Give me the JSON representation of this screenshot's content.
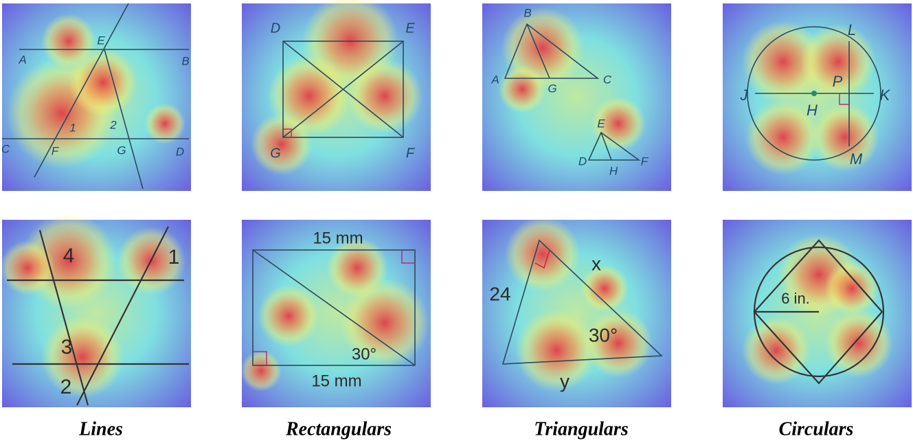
{
  "captions": [
    "Lines",
    "Rectangulars",
    "Triangulars",
    "Circulars"
  ],
  "panels": [
    {
      "labels": [
        "E",
        "A",
        "B",
        "1",
        "2",
        "C",
        "F",
        "G",
        "D"
      ]
    },
    {
      "labels": [
        "D",
        "E",
        "G",
        "F"
      ]
    },
    {
      "labels": [
        "B",
        "A",
        "G",
        "C",
        "E",
        "D",
        "H",
        "F"
      ]
    },
    {
      "labels": [
        "L",
        "P",
        "J",
        "K",
        "H",
        "M"
      ]
    },
    {
      "labels": [
        "4",
        "1",
        "3",
        "2"
      ]
    },
    {
      "labels": [
        "15 mm",
        "30°",
        "15 mm"
      ]
    },
    {
      "labels": [
        "x",
        "24",
        "30°",
        "y"
      ]
    },
    {
      "labels": [
        "6 in."
      ]
    }
  ]
}
